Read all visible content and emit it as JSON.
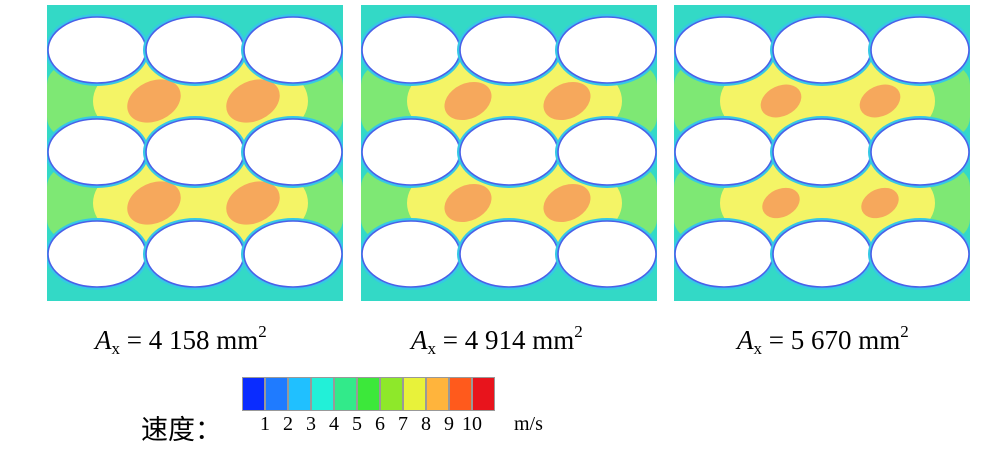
{
  "panels": [
    {
      "caption": {
        "var": "A",
        "sub": "x",
        "rest": " = 4 158 mm",
        "sup": "2"
      }
    },
    {
      "caption": {
        "var": "A",
        "sub": "x",
        "rest": " = 4 914 mm",
        "sup": "2"
      }
    },
    {
      "caption": {
        "var": "A",
        "sub": "x",
        "rest": " = 5 670 mm",
        "sup": "2"
      }
    }
  ],
  "legend": {
    "title": "速度：",
    "unit": "m/s",
    "ticks": [
      "1",
      "2",
      "3",
      "4",
      "5",
      "6",
      "7",
      "8",
      "9",
      "10"
    ],
    "colors": [
      "#0a2cff",
      "#1f7bff",
      "#20c0ff",
      "#22f0d8",
      "#32ea8a",
      "#3ce83a",
      "#8ee82a",
      "#e8f23a",
      "#ffb43c",
      "#ff5a1c",
      "#e8141c"
    ]
  },
  "field_colors": {
    "background": "#33d9c6",
    "light_green": "#7ee874",
    "yellow": "#f4f466",
    "orange": "#f6a85c",
    "tube_edge": "#4a60e8"
  }
}
